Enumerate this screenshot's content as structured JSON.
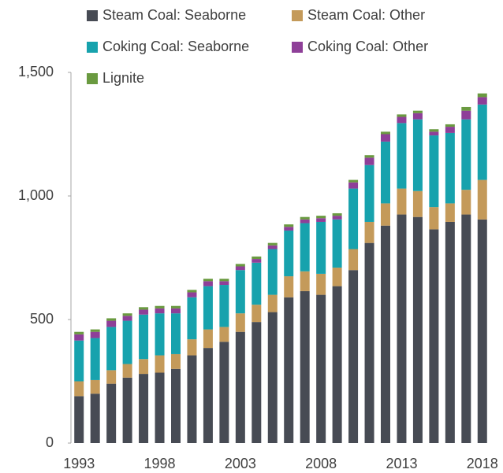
{
  "chart_data": {
    "type": "stacked_bar",
    "categories": [
      1993,
      null,
      null,
      null,
      null,
      1998,
      null,
      null,
      null,
      null,
      2003,
      null,
      null,
      null,
      null,
      2008,
      null,
      null,
      null,
      null,
      2013,
      null,
      null,
      null,
      null,
      2018
    ],
    "series": [
      {
        "name": "Steam Coal: Seaborne",
        "color": "#474b54",
        "values": [
          190,
          200,
          240,
          265,
          280,
          285,
          300,
          355,
          385,
          410,
          450,
          490,
          530,
          590,
          615,
          600,
          635,
          700,
          810,
          880,
          925,
          915,
          865,
          895,
          925,
          905
        ]
      },
      {
        "name": "Steam Coal: Other",
        "color": "#c49a5a",
        "values": [
          60,
          55,
          55,
          55,
          60,
          70,
          60,
          65,
          75,
          60,
          75,
          70,
          70,
          85,
          80,
          85,
          75,
          85,
          85,
          90,
          105,
          105,
          90,
          75,
          100,
          160
        ]
      },
      {
        "name": "Coking Coal: Seaborne",
        "color": "#17a2ad",
        "values": [
          165,
          170,
          175,
          175,
          180,
          170,
          165,
          170,
          175,
          170,
          175,
          170,
          185,
          185,
          195,
          210,
          195,
          245,
          230,
          250,
          265,
          290,
          290,
          285,
          285,
          305
        ]
      },
      {
        "name": "Coking Coal: Other",
        "color": "#8e3f98",
        "values": [
          25,
          25,
          25,
          20,
          20,
          20,
          20,
          20,
          20,
          15,
          15,
          15,
          15,
          15,
          15,
          15,
          15,
          25,
          30,
          30,
          25,
          25,
          15,
          25,
          35,
          30
        ]
      },
      {
        "name": "Lignite",
        "color": "#6a9a40",
        "values": [
          10,
          10,
          10,
          10,
          10,
          10,
          10,
          10,
          10,
          10,
          10,
          10,
          10,
          10,
          10,
          10,
          10,
          10,
          10,
          10,
          10,
          10,
          10,
          10,
          15,
          15
        ]
      }
    ],
    "ylim": [
      0,
      1500
    ],
    "yticks": [
      0,
      500,
      {
        "value": 1000,
        "label": "1,000"
      },
      {
        "value": 1500,
        "label": "1,500"
      }
    ],
    "grid": false
  }
}
